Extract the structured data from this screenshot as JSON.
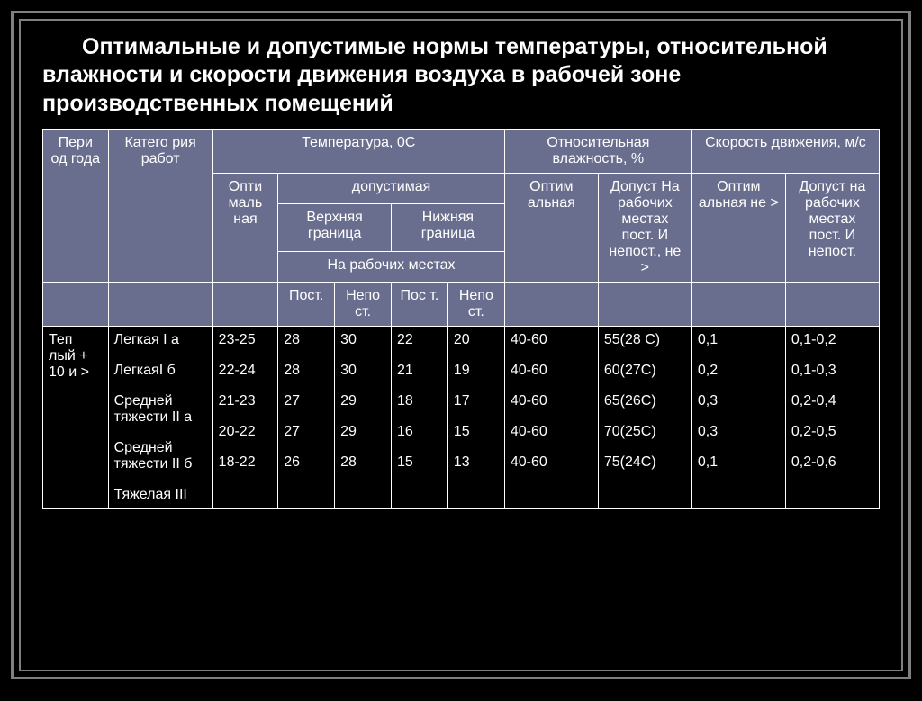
{
  "title": "Оптимальные и допустимые нормы температуры, относительной влажности и скорости движения воздуха в рабочей зоне производственных помещений",
  "header": {
    "period": "Пери од года",
    "category": "Катего рия работ",
    "temp_group": "Температура, 0С",
    "humidity_group": "Относительная влажность, %",
    "speed_group": "Скорость движения, м/с",
    "optimal": "Опти маль ная",
    "permissible": "допустимая",
    "upper": "Верхняя граница",
    "lower": "Нижняя граница",
    "at_workplaces": "На рабочих местах",
    "post": "Пост.",
    "nepost": "Непо ст.",
    "pos_t": "Пос т.",
    "hum_optimal": "Оптим альная",
    "hum_permissible": "Допуст На рабочих местах пост. И непост., не >",
    "speed_optimal": "Оптим альная не >",
    "speed_permissible": "Допуст на рабочих местах пост. И непост."
  },
  "body": {
    "period_label": "Теп лый + 10 и >",
    "categories": [
      "Легкая І а",
      "ЛегкаяІ б",
      "Средней тяжести ІІ а",
      "Средней тяжести ІІ б",
      "Тяжелая ІІІ"
    ],
    "temp_optimal": [
      "23-25",
      "22-24",
      "21-23",
      "20-22",
      "18-22"
    ],
    "temp_upper_post": [
      "28",
      "28",
      "27",
      "27",
      "26"
    ],
    "temp_upper_nepost": [
      "30",
      "30",
      "29",
      "29",
      "28"
    ],
    "temp_lower_post": [
      "22",
      "21",
      "18",
      "16",
      "15"
    ],
    "temp_lower_nepost": [
      "20",
      "19",
      "17",
      "15",
      "13"
    ],
    "hum_optimal": [
      "40-60",
      "40-60",
      "40-60",
      "40-60",
      "40-60"
    ],
    "hum_permissible": [
      "55(28 С)",
      "60(27С)",
      "65(26С)",
      "70(25С)",
      "75(24С)"
    ],
    "speed_optimal": [
      "0,1",
      "0,2",
      "0,3",
      "0,3",
      "0,1"
    ],
    "speed_permissible": [
      "0,1-0,2",
      "0,1-0,3",
      "0,2-0,4",
      "0,2-0,5",
      "0,2-0,6"
    ]
  },
  "style": {
    "header_bg": "#6a6e8e",
    "body_bg": "#000000",
    "border_color": "#ffffff",
    "text_color": "#ffffff",
    "title_fontsize": 25,
    "cell_fontsize": 16
  }
}
